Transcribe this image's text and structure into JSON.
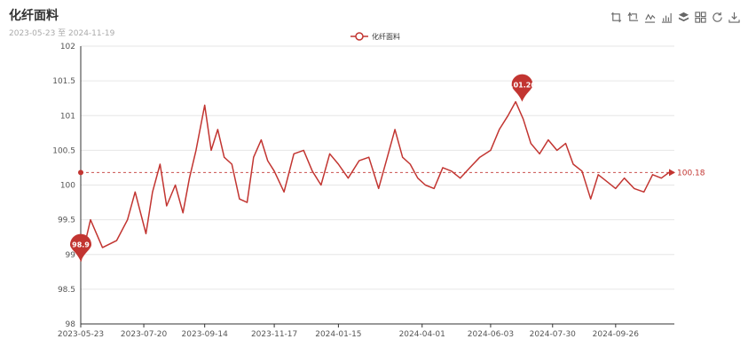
{
  "header": {
    "title": "化纤面料",
    "subtitle": "2023-05-23 至 2024-11-19"
  },
  "toolbox": {
    "items": [
      {
        "name": "zoom-icon"
      },
      {
        "name": "zoom-reset-icon"
      },
      {
        "name": "line-chart-icon"
      },
      {
        "name": "bar-chart-icon"
      },
      {
        "name": "stack-icon"
      },
      {
        "name": "data-view-icon"
      },
      {
        "name": "restore-icon"
      },
      {
        "name": "save-image-icon"
      }
    ]
  },
  "colors": {
    "series": "#c23531",
    "grid": "#e6e6e6",
    "axis": "#333333"
  },
  "chart_data": {
    "type": "line",
    "title": "化纤面料",
    "subtitle": "2023-05-23 至 2024-11-19",
    "legend": {
      "entries": [
        "化纤面料"
      ],
      "position": "top-center"
    },
    "grid": true,
    "ylim": [
      98,
      102
    ],
    "y_ticks": [
      "98",
      "98.5",
      "99",
      "99.5",
      "100",
      "100.5",
      "101",
      "101.5",
      "102"
    ],
    "x_ticks": [
      "2023-05-23",
      "2023-07-20",
      "2023-09-14",
      "2023-11-17",
      "2024-01-15",
      "2024-04-01",
      "2024-06-03",
      "2024-07-30",
      "2024-09-26"
    ],
    "x_range": [
      "2023-05-23",
      "2024-11-19"
    ],
    "series": [
      {
        "name": "化纤面料",
        "x": [
          "2023-05-23",
          "2023-06-01",
          "2023-06-12",
          "2023-06-25",
          "2023-07-05",
          "2023-07-12",
          "2023-07-22",
          "2023-07-28",
          "2023-08-04",
          "2023-08-10",
          "2023-08-18",
          "2023-08-25",
          "2023-08-31",
          "2023-09-06",
          "2023-09-14",
          "2023-09-20",
          "2023-09-26",
          "2023-10-02",
          "2023-10-09",
          "2023-10-16",
          "2023-10-23",
          "2023-10-29",
          "2023-11-05",
          "2023-11-11",
          "2023-11-17",
          "2023-11-26",
          "2023-12-05",
          "2023-12-14",
          "2023-12-22",
          "2023-12-30",
          "2024-01-07",
          "2024-01-15",
          "2024-01-24",
          "2024-02-03",
          "2024-02-12",
          "2024-02-21",
          "2024-02-29",
          "2024-03-07",
          "2024-03-14",
          "2024-03-21",
          "2024-03-28",
          "2024-04-04",
          "2024-04-12",
          "2024-04-20",
          "2024-04-28",
          "2024-05-06",
          "2024-05-15",
          "2024-05-24",
          "2024-06-03",
          "2024-06-11",
          "2024-06-19",
          "2024-06-26",
          "2024-07-03",
          "2024-07-10",
          "2024-07-18",
          "2024-07-26",
          "2024-08-03",
          "2024-08-11",
          "2024-08-18",
          "2024-08-26",
          "2024-09-03",
          "2024-09-10",
          "2024-09-18",
          "2024-09-26",
          "2024-10-04",
          "2024-10-13",
          "2024-10-22",
          "2024-10-30",
          "2024-11-07",
          "2024-11-14",
          "2024-11-19"
        ],
        "values": [
          98.9,
          99.5,
          99.1,
          99.2,
          99.5,
          99.9,
          99.3,
          99.9,
          100.3,
          99.7,
          100.0,
          99.6,
          100.1,
          100.5,
          101.15,
          100.5,
          100.8,
          100.4,
          100.3,
          99.8,
          99.75,
          100.4,
          100.65,
          100.35,
          100.2,
          99.9,
          100.45,
          100.5,
          100.2,
          100.0,
          100.45,
          100.3,
          100.1,
          100.35,
          100.4,
          99.95,
          100.4,
          100.8,
          100.4,
          100.3,
          100.1,
          100.0,
          99.95,
          100.25,
          100.2,
          100.1,
          100.25,
          100.4,
          100.5,
          100.8,
          101.0,
          101.2,
          100.95,
          100.6,
          100.45,
          100.65,
          100.5,
          100.6,
          100.3,
          100.2,
          99.8,
          100.15,
          100.05,
          99.95,
          100.1,
          99.95,
          99.9,
          100.15,
          100.1,
          100.18,
          100.18
        ]
      }
    ],
    "annotations": {
      "max": {
        "label": "101.20",
        "value": 101.2,
        "x": "2024-07-02"
      },
      "min": {
        "label": "98.9",
        "value": 98.9,
        "x": "2023-05-23"
      },
      "average": {
        "label": "100.18",
        "value": 100.18
      }
    }
  }
}
